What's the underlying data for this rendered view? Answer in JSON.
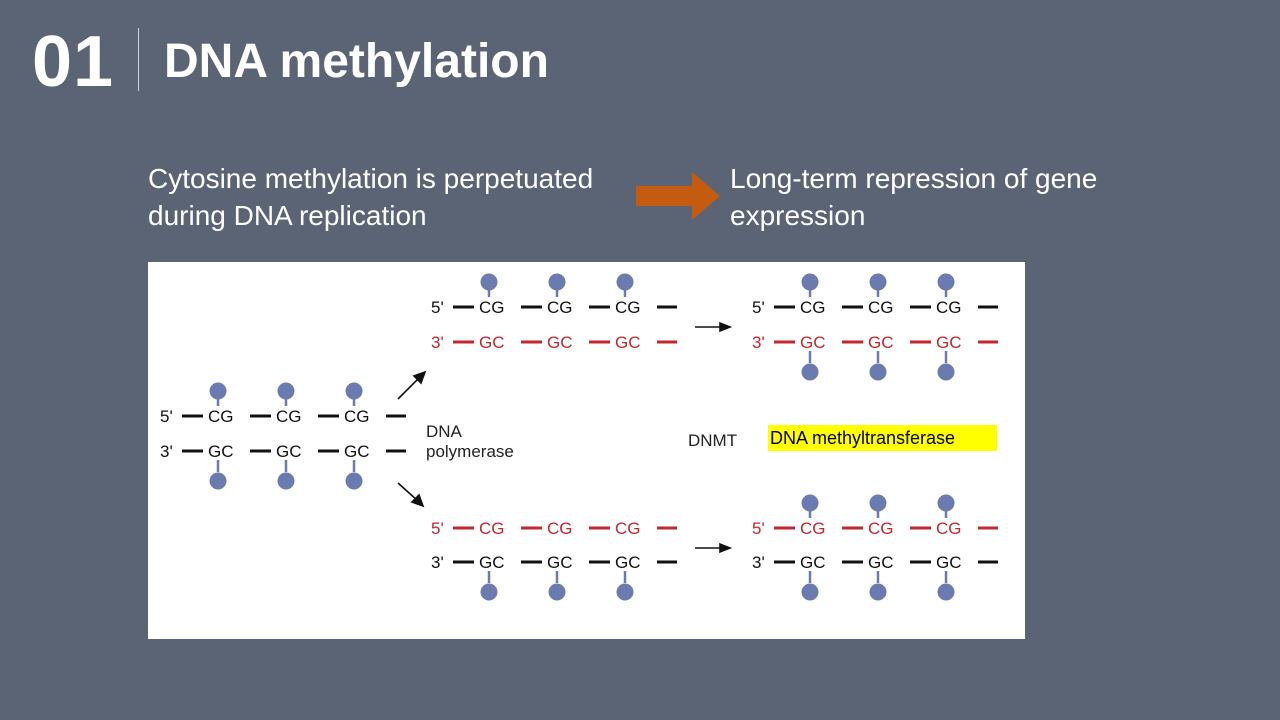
{
  "header": {
    "slide_number": "01",
    "title": "DNA methylation"
  },
  "captions": {
    "left": "Cytosine methylation is perpetuated during DNA replication",
    "right": "Long-term repression of gene expression"
  },
  "diagram": {
    "parent_top": {
      "end_label": "5'",
      "units": [
        "CG",
        "CG",
        "CG"
      ]
    },
    "parent_bottom": {
      "end_label": "3'",
      "units": [
        "GC",
        "GC",
        "GC"
      ]
    },
    "daughter1_top": {
      "end_label": "5'",
      "units": [
        "CG",
        "CG",
        "CG"
      ]
    },
    "daughter1_bottom": {
      "end_label": "3'",
      "units": [
        "GC",
        "GC",
        "GC"
      ]
    },
    "daughter2_top": {
      "end_label": "5'",
      "units": [
        "CG",
        "CG",
        "CG"
      ]
    },
    "daughter2_bottom": {
      "end_label": "3'",
      "units": [
        "GC",
        "GC",
        "GC"
      ]
    },
    "product1_top": {
      "end_label": "5'",
      "units": [
        "CG",
        "CG",
        "CG"
      ]
    },
    "product1_bottom": {
      "end_label": "3'",
      "units": [
        "GC",
        "GC",
        "GC"
      ]
    },
    "product2_top": {
      "end_label": "5'",
      "units": [
        "CG",
        "CG",
        "CG"
      ]
    },
    "product2_bottom": {
      "end_label": "3'",
      "units": [
        "GC",
        "GC",
        "GC"
      ]
    },
    "polymerase_label_1": "DNA",
    "polymerase_label_2": "polymerase",
    "dnmt_label": "DNMT",
    "dnmt_definition": "DNA methyltransferase"
  },
  "colors": {
    "background": "#5b6475",
    "parent_strand": "#111111",
    "new_strand": "#c1272d",
    "methyl_group": "#6a7bb0",
    "flow_arrow": "#c55a11",
    "highlight": "#ffff00"
  }
}
